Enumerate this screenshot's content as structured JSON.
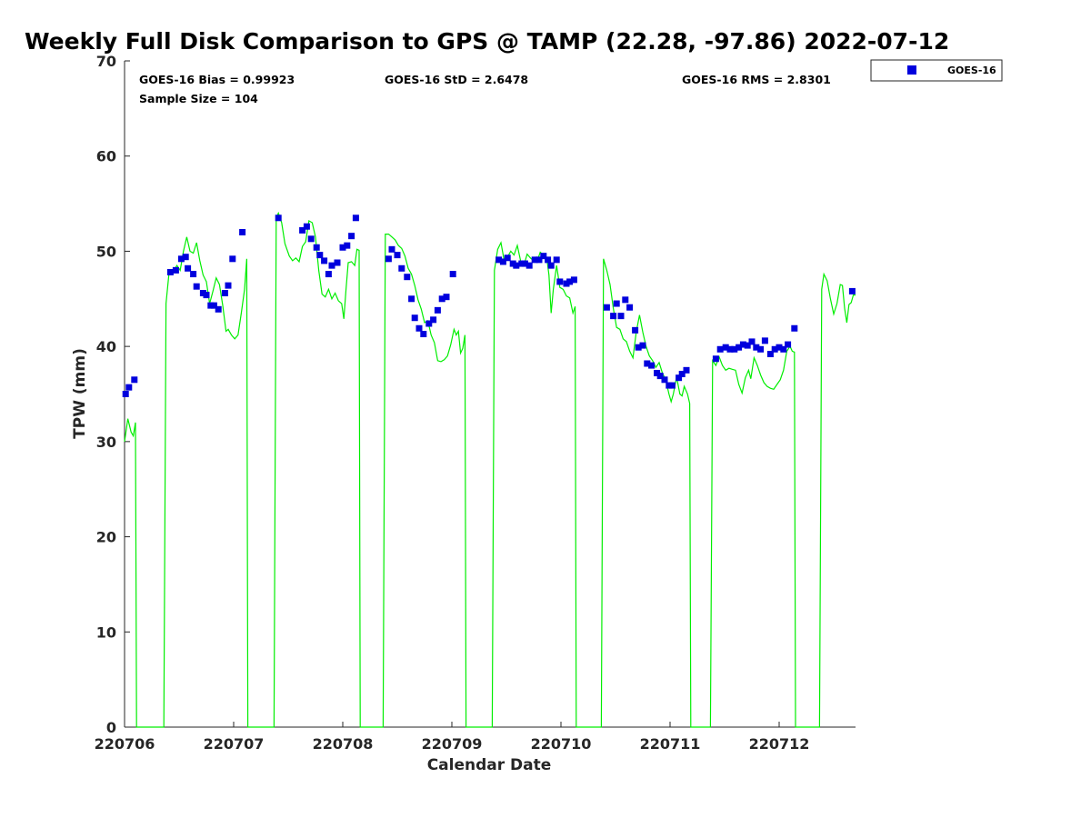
{
  "chart_data": {
    "type": "scatter",
    "title": "Weekly Full Disk Comparison to GPS @ TAMP (22.28, -97.86) 2022-07-12",
    "xlabel": "Calendar Date",
    "ylabel": "TPW (mm)",
    "xlim": [
      0,
      6.7
    ],
    "ylim": [
      0,
      70
    ],
    "x_ticks": [
      {
        "pos": 0,
        "label": "220706"
      },
      {
        "pos": 1,
        "label": "220707"
      },
      {
        "pos": 2,
        "label": "220708"
      },
      {
        "pos": 3,
        "label": "220709"
      },
      {
        "pos": 4,
        "label": "220710"
      },
      {
        "pos": 5,
        "label": "220711"
      },
      {
        "pos": 6,
        "label": "220712"
      }
    ],
    "y_ticks": [
      0,
      10,
      20,
      30,
      40,
      50,
      60,
      70
    ],
    "stats": {
      "bias": "GOES-16 Bias = 0.99923",
      "std": "GOES-16 StD = 2.6478",
      "rms": "GOES-16 RMS = 2.8301",
      "sample": "Sample Size = 104"
    },
    "legend": {
      "position": "top-right",
      "entries": [
        "GOES-16"
      ]
    },
    "colors": {
      "goes": "#0000dd",
      "gps": "#00ee00",
      "axis": "#262626"
    },
    "series": [
      {
        "name": "GOES-16",
        "kind": "markers",
        "points": [
          [
            0.01,
            35.0
          ],
          [
            0.04,
            35.7
          ],
          [
            0.09,
            36.5
          ],
          [
            0.42,
            47.8
          ],
          [
            0.47,
            48.0
          ],
          [
            0.52,
            49.2
          ],
          [
            0.56,
            49.4
          ],
          [
            0.58,
            48.2
          ],
          [
            0.63,
            47.6
          ],
          [
            0.66,
            46.3
          ],
          [
            0.72,
            45.6
          ],
          [
            0.75,
            45.4
          ],
          [
            0.79,
            44.3
          ],
          [
            0.82,
            44.3
          ],
          [
            0.86,
            43.9
          ],
          [
            0.92,
            45.6
          ],
          [
            0.95,
            46.4
          ],
          [
            0.99,
            49.2
          ],
          [
            1.08,
            52.0
          ],
          [
            1.41,
            53.5
          ],
          [
            1.63,
            52.2
          ],
          [
            1.67,
            52.6
          ],
          [
            1.71,
            51.3
          ],
          [
            1.76,
            50.4
          ],
          [
            1.79,
            49.6
          ],
          [
            1.83,
            49.0
          ],
          [
            1.87,
            47.6
          ],
          [
            1.9,
            48.5
          ],
          [
            1.95,
            48.8
          ],
          [
            2.0,
            50.4
          ],
          [
            2.04,
            50.6
          ],
          [
            2.08,
            51.6
          ],
          [
            2.12,
            53.5
          ],
          [
            2.42,
            49.2
          ],
          [
            2.45,
            50.2
          ],
          [
            2.5,
            49.6
          ],
          [
            2.54,
            48.2
          ],
          [
            2.59,
            47.3
          ],
          [
            2.63,
            45.0
          ],
          [
            2.66,
            43.0
          ],
          [
            2.7,
            41.9
          ],
          [
            2.74,
            41.3
          ],
          [
            2.79,
            42.4
          ],
          [
            2.83,
            42.8
          ],
          [
            2.87,
            43.8
          ],
          [
            2.91,
            45.0
          ],
          [
            2.95,
            45.2
          ],
          [
            3.01,
            47.6
          ],
          [
            3.43,
            49.1
          ],
          [
            3.47,
            48.9
          ],
          [
            3.51,
            49.3
          ],
          [
            3.56,
            48.7
          ],
          [
            3.59,
            48.5
          ],
          [
            3.64,
            48.7
          ],
          [
            3.67,
            48.7
          ],
          [
            3.71,
            48.5
          ],
          [
            3.76,
            49.1
          ],
          [
            3.8,
            49.1
          ],
          [
            3.84,
            49.5
          ],
          [
            3.88,
            49.1
          ],
          [
            3.91,
            48.5
          ],
          [
            3.96,
            49.1
          ],
          [
            3.99,
            46.8
          ],
          [
            4.05,
            46.6
          ],
          [
            4.08,
            46.8
          ],
          [
            4.12,
            47.0
          ],
          [
            4.42,
            44.1
          ],
          [
            4.48,
            43.2
          ],
          [
            4.51,
            44.5
          ],
          [
            4.55,
            43.2
          ],
          [
            4.59,
            44.9
          ],
          [
            4.63,
            44.1
          ],
          [
            4.68,
            41.7
          ],
          [
            4.71,
            39.9
          ],
          [
            4.75,
            40.1
          ],
          [
            4.79,
            38.2
          ],
          [
            4.83,
            38.0
          ],
          [
            4.88,
            37.2
          ],
          [
            4.91,
            36.9
          ],
          [
            4.95,
            36.5
          ],
          [
            4.99,
            35.9
          ],
          [
            5.02,
            35.9
          ],
          [
            5.08,
            36.7
          ],
          [
            5.11,
            37.1
          ],
          [
            5.15,
            37.5
          ],
          [
            5.42,
            38.7
          ],
          [
            5.46,
            39.7
          ],
          [
            5.51,
            39.9
          ],
          [
            5.55,
            39.7
          ],
          [
            5.59,
            39.7
          ],
          [
            5.63,
            39.9
          ],
          [
            5.67,
            40.2
          ],
          [
            5.71,
            40.1
          ],
          [
            5.75,
            40.5
          ],
          [
            5.79,
            39.9
          ],
          [
            5.83,
            39.7
          ],
          [
            5.87,
            40.6
          ],
          [
            5.92,
            39.2
          ],
          [
            5.96,
            39.7
          ],
          [
            6.0,
            39.9
          ],
          [
            6.04,
            39.7
          ],
          [
            6.08,
            40.2
          ],
          [
            6.14,
            41.9
          ],
          [
            6.67,
            45.8
          ]
        ]
      },
      {
        "name": "",
        "kind": "line",
        "points": [
          [
            0.0,
            30.0
          ],
          [
            0.03,
            32.4
          ],
          [
            0.06,
            31.0
          ],
          [
            0.08,
            30.6
          ],
          [
            0.1,
            32.0
          ],
          [
            0.11,
            0.0
          ],
          [
            0.36,
            0.0
          ],
          [
            0.38,
            44.5
          ],
          [
            0.41,
            48.0
          ],
          [
            0.44,
            47.8
          ],
          [
            0.48,
            48.5
          ],
          [
            0.51,
            48.0
          ],
          [
            0.54,
            50.0
          ],
          [
            0.57,
            51.5
          ],
          [
            0.6,
            50.0
          ],
          [
            0.63,
            49.8
          ],
          [
            0.66,
            50.9
          ],
          [
            0.69,
            49.0
          ],
          [
            0.72,
            47.5
          ],
          [
            0.75,
            46.8
          ],
          [
            0.78,
            44.5
          ],
          [
            0.81,
            45.8
          ],
          [
            0.84,
            47.2
          ],
          [
            0.87,
            46.5
          ],
          [
            0.9,
            44.3
          ],
          [
            0.93,
            41.6
          ],
          [
            0.95,
            41.8
          ],
          [
            0.98,
            41.2
          ],
          [
            1.01,
            40.8
          ],
          [
            1.04,
            41.2
          ],
          [
            1.07,
            43.5
          ],
          [
            1.1,
            46.0
          ],
          [
            1.12,
            49.2
          ],
          [
            1.13,
            0.0
          ],
          [
            1.37,
            0.0
          ],
          [
            1.39,
            53.5
          ],
          [
            1.41,
            54.0
          ],
          [
            1.44,
            53.0
          ],
          [
            1.47,
            50.8
          ],
          [
            1.51,
            49.5
          ],
          [
            1.54,
            49.0
          ],
          [
            1.57,
            49.3
          ],
          [
            1.6,
            48.9
          ],
          [
            1.63,
            50.5
          ],
          [
            1.66,
            51.0
          ],
          [
            1.69,
            53.2
          ],
          [
            1.72,
            53.0
          ],
          [
            1.75,
            51.5
          ],
          [
            1.78,
            48.0
          ],
          [
            1.81,
            45.5
          ],
          [
            1.84,
            45.2
          ],
          [
            1.87,
            46.0
          ],
          [
            1.9,
            45.0
          ],
          [
            1.93,
            45.6
          ],
          [
            1.96,
            44.8
          ],
          [
            1.99,
            44.5
          ],
          [
            2.01,
            42.9
          ],
          [
            2.03,
            46.0
          ],
          [
            2.05,
            48.8
          ],
          [
            2.08,
            48.9
          ],
          [
            2.11,
            48.5
          ],
          [
            2.13,
            50.2
          ],
          [
            2.15,
            50.1
          ],
          [
            2.16,
            0.0
          ],
          [
            2.37,
            0.0
          ],
          [
            2.39,
            51.8
          ],
          [
            2.42,
            51.8
          ],
          [
            2.45,
            51.5
          ],
          [
            2.48,
            51.2
          ],
          [
            2.51,
            50.6
          ],
          [
            2.54,
            50.3
          ],
          [
            2.57,
            49.5
          ],
          [
            2.6,
            48.2
          ],
          [
            2.63,
            47.6
          ],
          [
            2.66,
            46.4
          ],
          [
            2.69,
            44.9
          ],
          [
            2.72,
            43.9
          ],
          [
            2.75,
            42.5
          ],
          [
            2.78,
            42.7
          ],
          [
            2.81,
            41.2
          ],
          [
            2.84,
            40.4
          ],
          [
            2.87,
            38.5
          ],
          [
            2.9,
            38.4
          ],
          [
            2.93,
            38.6
          ],
          [
            2.96,
            39.0
          ],
          [
            2.99,
            40.2
          ],
          [
            3.02,
            41.8
          ],
          [
            3.04,
            41.2
          ],
          [
            3.06,
            41.6
          ],
          [
            3.08,
            39.3
          ],
          [
            3.1,
            39.8
          ],
          [
            3.12,
            41.2
          ],
          [
            3.13,
            0.0
          ],
          [
            3.37,
            0.0
          ],
          [
            3.39,
            48.0
          ],
          [
            3.42,
            50.2
          ],
          [
            3.45,
            50.9
          ],
          [
            3.48,
            49.0
          ],
          [
            3.51,
            49.4
          ],
          [
            3.54,
            50.0
          ],
          [
            3.57,
            49.6
          ],
          [
            3.6,
            50.6
          ],
          [
            3.63,
            49.0
          ],
          [
            3.66,
            48.5
          ],
          [
            3.69,
            49.7
          ],
          [
            3.72,
            49.3
          ],
          [
            3.75,
            49.0
          ],
          [
            3.78,
            48.9
          ],
          [
            3.81,
            49.9
          ],
          [
            3.84,
            49.6
          ],
          [
            3.87,
            49.3
          ],
          [
            3.89,
            47.5
          ],
          [
            3.91,
            43.5
          ],
          [
            3.93,
            46.0
          ],
          [
            3.96,
            48.5
          ],
          [
            3.99,
            46.2
          ],
          [
            4.02,
            46.0
          ],
          [
            4.05,
            45.3
          ],
          [
            4.08,
            45.1
          ],
          [
            4.11,
            43.5
          ],
          [
            4.13,
            44.2
          ],
          [
            4.14,
            0.0
          ],
          [
            4.37,
            0.0
          ],
          [
            4.39,
            49.2
          ],
          [
            4.42,
            48.0
          ],
          [
            4.45,
            46.5
          ],
          [
            4.48,
            44.0
          ],
          [
            4.51,
            42.0
          ],
          [
            4.54,
            41.8
          ],
          [
            4.57,
            40.8
          ],
          [
            4.6,
            40.5
          ],
          [
            4.63,
            39.5
          ],
          [
            4.66,
            38.8
          ],
          [
            4.69,
            41.5
          ],
          [
            4.72,
            43.3
          ],
          [
            4.75,
            41.5
          ],
          [
            4.78,
            40.0
          ],
          [
            4.81,
            39.0
          ],
          [
            4.84,
            38.5
          ],
          [
            4.87,
            37.8
          ],
          [
            4.9,
            38.3
          ],
          [
            4.93,
            37.2
          ],
          [
            4.96,
            36.5
          ],
          [
            4.99,
            35.0
          ],
          [
            5.01,
            34.2
          ],
          [
            5.03,
            35.0
          ],
          [
            5.06,
            36.8
          ],
          [
            5.09,
            35.0
          ],
          [
            5.11,
            34.8
          ],
          [
            5.13,
            35.8
          ],
          [
            5.16,
            35.0
          ],
          [
            5.18,
            34.0
          ],
          [
            5.19,
            0.0
          ],
          [
            5.37,
            0.0
          ],
          [
            5.39,
            38.5
          ],
          [
            5.42,
            38.0
          ],
          [
            5.45,
            38.9
          ],
          [
            5.48,
            38.0
          ],
          [
            5.51,
            37.5
          ],
          [
            5.54,
            37.7
          ],
          [
            5.57,
            37.6
          ],
          [
            5.6,
            37.5
          ],
          [
            5.63,
            36.0
          ],
          [
            5.66,
            35.1
          ],
          [
            5.69,
            36.7
          ],
          [
            5.72,
            37.5
          ],
          [
            5.74,
            36.6
          ],
          [
            5.77,
            38.8
          ],
          [
            5.8,
            38.0
          ],
          [
            5.83,
            37.0
          ],
          [
            5.86,
            36.2
          ],
          [
            5.89,
            35.8
          ],
          [
            5.92,
            35.6
          ],
          [
            5.95,
            35.5
          ],
          [
            5.98,
            36.0
          ],
          [
            6.01,
            36.5
          ],
          [
            6.04,
            37.5
          ],
          [
            6.07,
            39.5
          ],
          [
            6.1,
            40.0
          ],
          [
            6.12,
            39.5
          ],
          [
            6.14,
            39.4
          ],
          [
            6.15,
            0.0
          ],
          [
            6.37,
            0.0
          ],
          [
            6.39,
            46.0
          ],
          [
            6.41,
            47.6
          ],
          [
            6.44,
            46.9
          ],
          [
            6.47,
            45.0
          ],
          [
            6.5,
            43.4
          ],
          [
            6.53,
            44.5
          ],
          [
            6.56,
            46.5
          ],
          [
            6.58,
            46.4
          ],
          [
            6.6,
            44.0
          ],
          [
            6.62,
            42.5
          ],
          [
            6.64,
            44.4
          ],
          [
            6.66,
            44.6
          ],
          [
            6.68,
            45.4
          ],
          [
            6.7,
            45.4
          ]
        ]
      }
    ]
  }
}
